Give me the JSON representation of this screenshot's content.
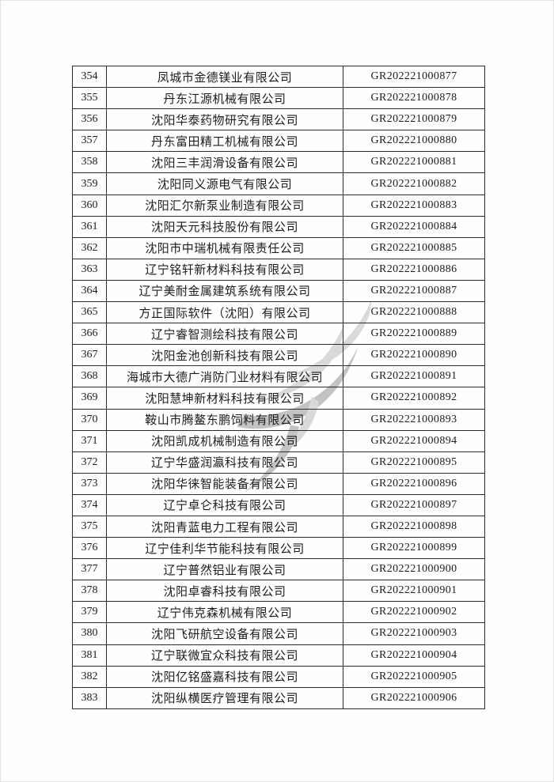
{
  "page": {
    "kind": "scanned-gazette-table-page",
    "background_color": "#fefefe",
    "edge_border_color": "#e4e4e4"
  },
  "watermark": {
    "description": "grey swoosh logo watermark behind table",
    "color_light": "#d9d9d9",
    "color_dark": "#c3c3c3"
  },
  "table": {
    "border_color": "#2b2b2b",
    "columns": [
      {
        "key": "no",
        "label": ""
      },
      {
        "key": "name",
        "label": ""
      },
      {
        "key": "code",
        "label": ""
      }
    ],
    "rows": [
      {
        "no": "354",
        "name": "凤城市金德镁业有限公司",
        "code": "GR202221000877"
      },
      {
        "no": "355",
        "name": "丹东江源机械有限公司",
        "code": "GR202221000878"
      },
      {
        "no": "356",
        "name": "沈阳华泰药物研究有限公司",
        "code": "GR202221000879"
      },
      {
        "no": "357",
        "name": "丹东富田精工机械有限公司",
        "code": "GR202221000880"
      },
      {
        "no": "358",
        "name": "沈阳三丰润滑设备有限公司",
        "code": "GR202221000881"
      },
      {
        "no": "359",
        "name": "沈阳同义源电气有限公司",
        "code": "GR202221000882"
      },
      {
        "no": "360",
        "name": "沈阳汇尔新泵业制造有限公司",
        "code": "GR202221000883"
      },
      {
        "no": "361",
        "name": "沈阳天元科技股份有限公司",
        "code": "GR202221000884"
      },
      {
        "no": "362",
        "name": "沈阳市中瑞机械有限责任公司",
        "code": "GR202221000885"
      },
      {
        "no": "363",
        "name": "辽宁铭轩新材料科技有限公司",
        "code": "GR202221000886"
      },
      {
        "no": "364",
        "name": "辽宁美耐金属建筑系统有限公司",
        "code": "GR202221000887"
      },
      {
        "no": "365",
        "name": "方正国际软件（沈阳）有限公司",
        "code": "GR202221000888"
      },
      {
        "no": "366",
        "name": "辽宁睿智测绘科技有限公司",
        "code": "GR202221000889"
      },
      {
        "no": "367",
        "name": "沈阳金池创新科技有限公司",
        "code": "GR202221000890"
      },
      {
        "no": "368",
        "name": "海城市大德广消防门业材料有限公司",
        "code": "GR202221000891"
      },
      {
        "no": "369",
        "name": "沈阳慧坤新材料科技有限公司",
        "code": "GR202221000892"
      },
      {
        "no": "370",
        "name": "鞍山市腾鳌东鹏饲料有限公司",
        "code": "GR202221000893"
      },
      {
        "no": "371",
        "name": "沈阳凯成机械制造有限公司",
        "code": "GR202221000894"
      },
      {
        "no": "372",
        "name": "辽宁华盛润瀛科技有限公司",
        "code": "GR202221000895"
      },
      {
        "no": "373",
        "name": "沈阳华徕智能装备有限公司",
        "code": "GR202221000896"
      },
      {
        "no": "374",
        "name": "辽宁卓仑科技有限公司",
        "code": "GR202221000897"
      },
      {
        "no": "375",
        "name": "沈阳青蓝电力工程有限公司",
        "code": "GR202221000898"
      },
      {
        "no": "376",
        "name": "辽宁佳利华节能科技有限公司",
        "code": "GR202221000899"
      },
      {
        "no": "377",
        "name": "辽宁普然铝业有限公司",
        "code": "GR202221000900"
      },
      {
        "no": "378",
        "name": "沈阳卓睿科技有限公司",
        "code": "GR202221000901"
      },
      {
        "no": "379",
        "name": "辽宁伟克森机械有限公司",
        "code": "GR202221000902"
      },
      {
        "no": "380",
        "name": "沈阳飞研航空设备有限公司",
        "code": "GR202221000903"
      },
      {
        "no": "381",
        "name": "辽宁联微宜众科技有限公司",
        "code": "GR202221000904"
      },
      {
        "no": "382",
        "name": "沈阳亿铭盛嘉科技有限公司",
        "code": "GR202221000905"
      },
      {
        "no": "383",
        "name": "沈阳纵横医疗管理有限公司",
        "code": "GR202221000906"
      }
    ]
  }
}
